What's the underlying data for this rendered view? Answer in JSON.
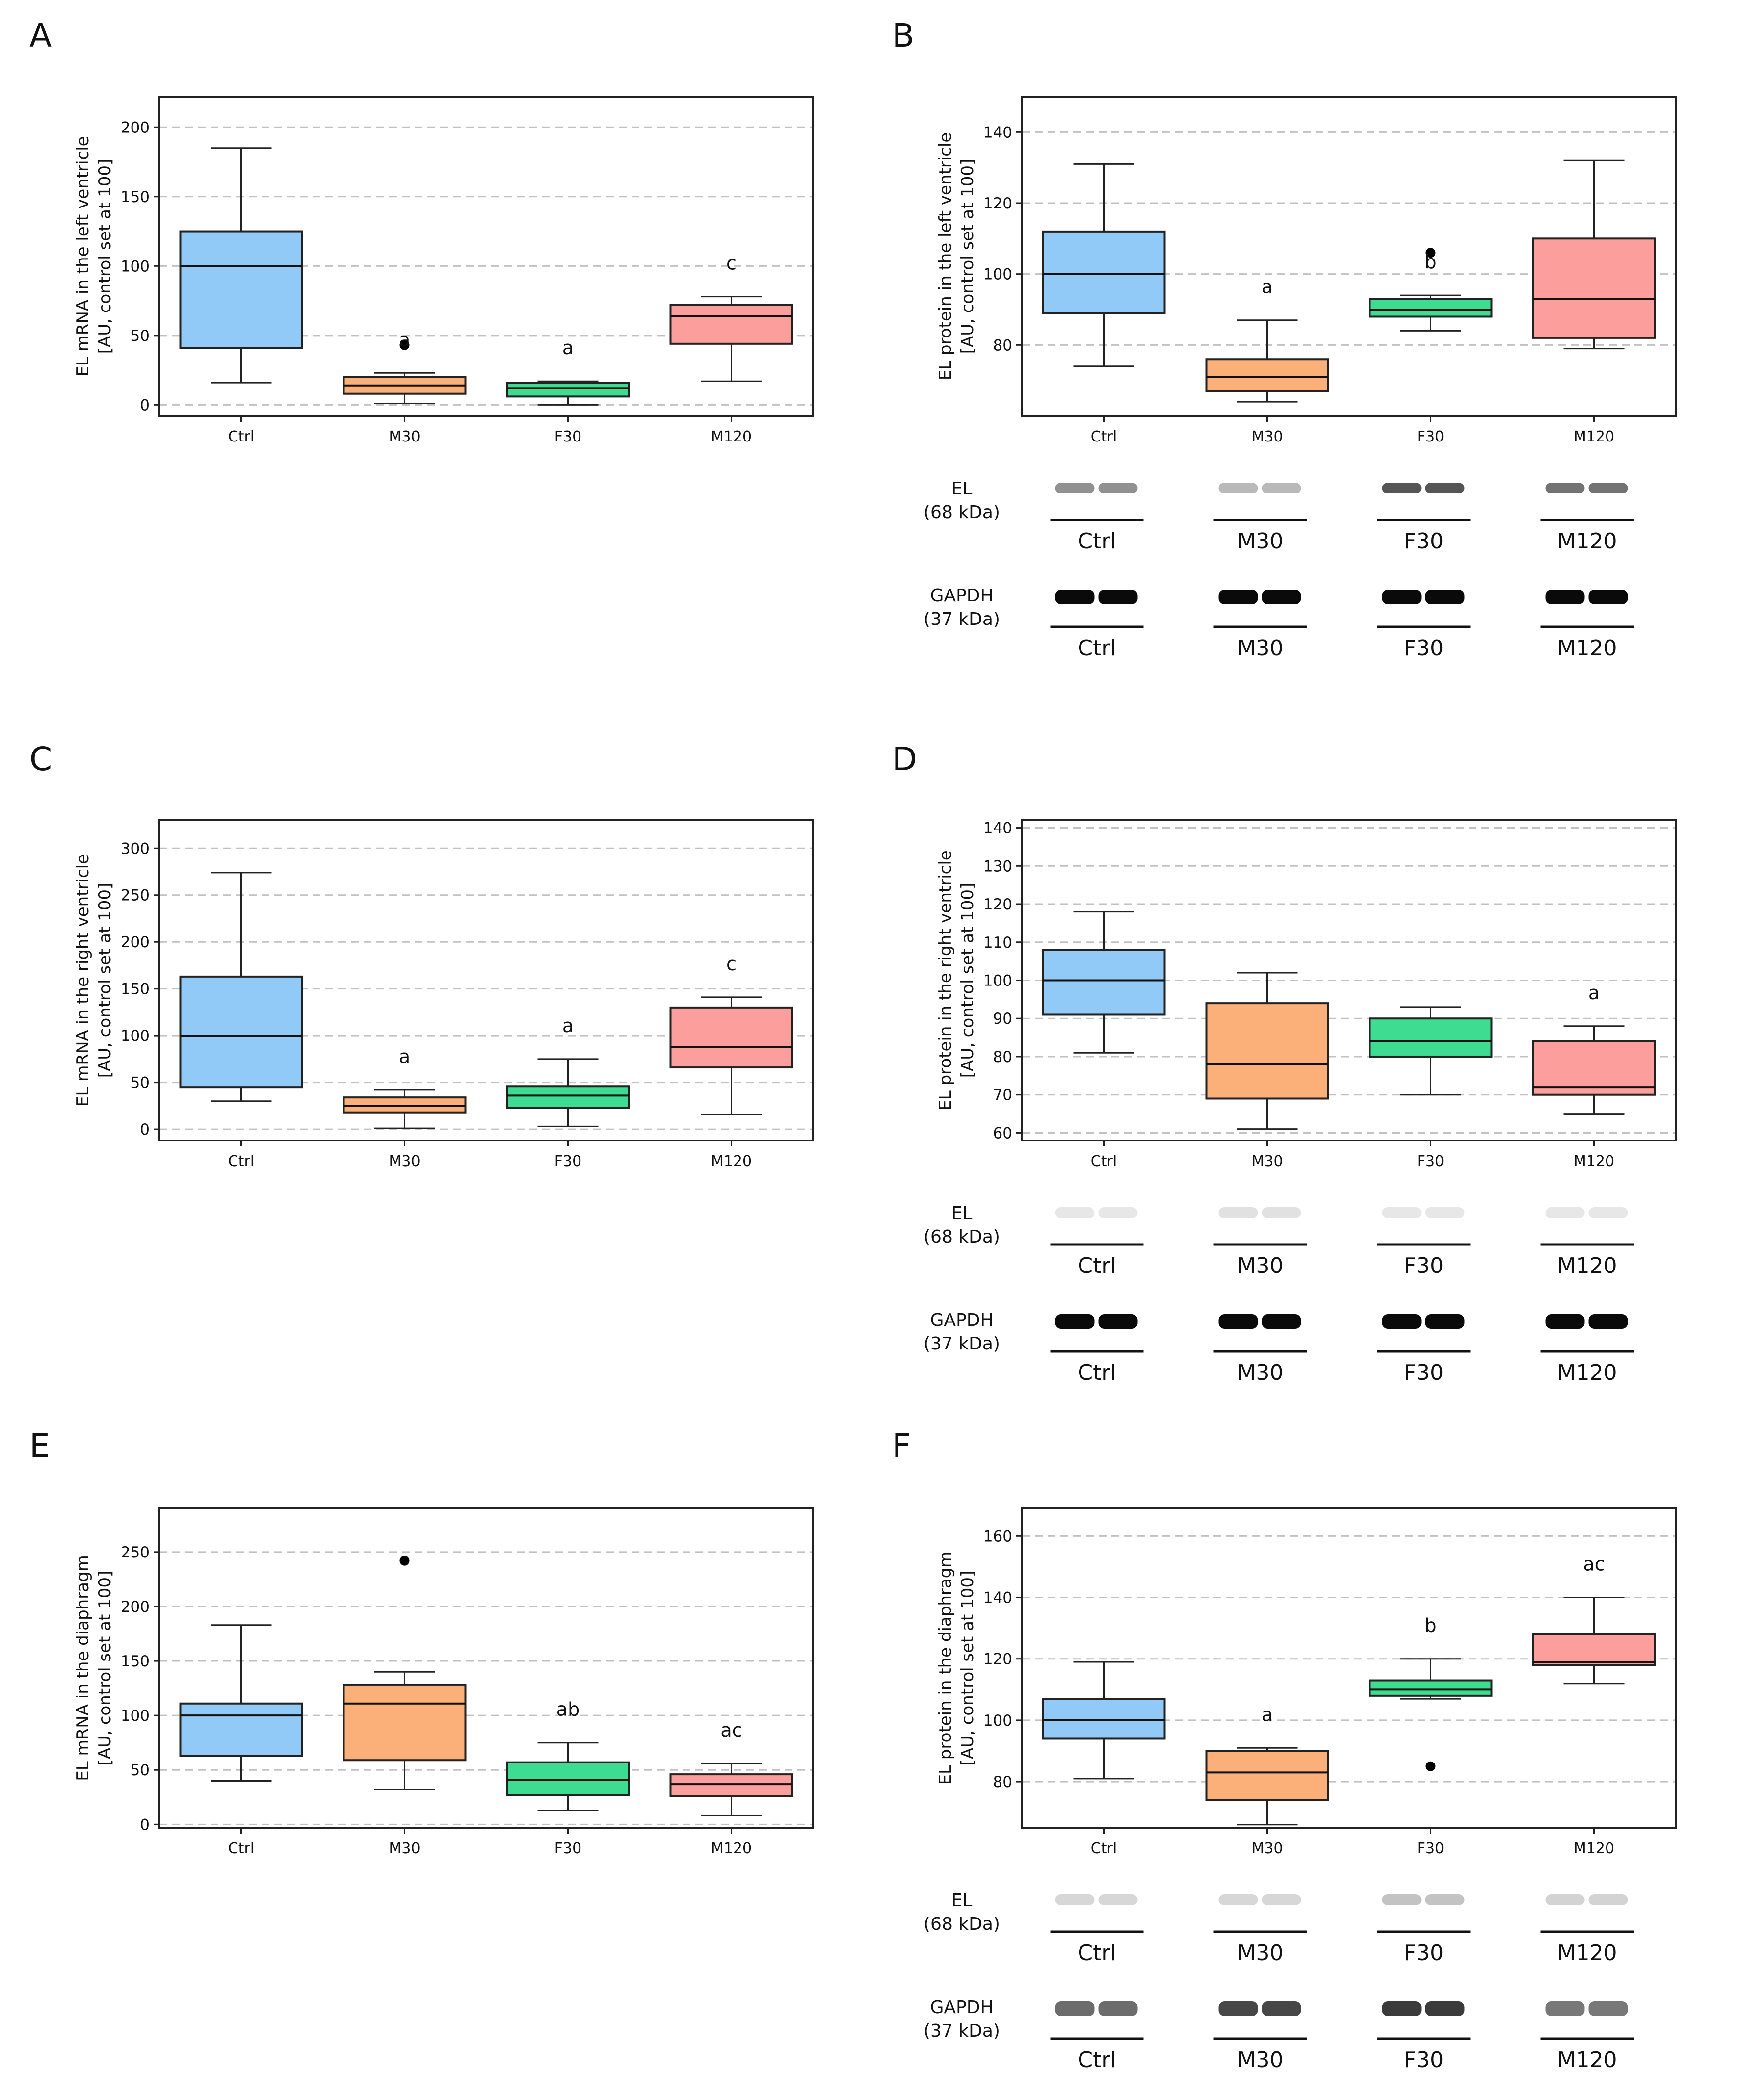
{
  "colors": {
    "Ctrl": "#91C9F7",
    "M30": "#FBB07A",
    "F30": "#3DDC91",
    "M120": "#FB9E9C"
  },
  "chart_data": [
    {
      "id": "A",
      "type": "box",
      "panel_label": "A",
      "title": "",
      "ylabel": [
        "EL mRNA in the left ventricle",
        "[AU, control set at 100]"
      ],
      "xlabel": "",
      "ylim": [
        -8,
        222
      ],
      "yticks": [
        0,
        50,
        100,
        150,
        200
      ],
      "grid": true,
      "categories": [
        "Ctrl",
        "M30",
        "F30",
        "M120"
      ],
      "boxes": [
        {
          "group": "Ctrl",
          "whisker_low": 16,
          "q1": 41,
          "median": 100,
          "q3": 125,
          "whisker_high": 185,
          "outliers": [],
          "letter": ""
        },
        {
          "group": "M30",
          "whisker_low": 1,
          "q1": 8,
          "median": 14,
          "q3": 20,
          "whisker_high": 23,
          "outliers": [
            43
          ],
          "letter": "a"
        },
        {
          "group": "F30",
          "whisker_low": 0,
          "q1": 6,
          "median": 12,
          "q3": 16,
          "whisker_high": 17,
          "outliers": [],
          "letter": "a"
        },
        {
          "group": "M120",
          "whisker_low": 17,
          "q1": 44,
          "median": 64,
          "q3": 72,
          "whisker_high": 78,
          "outliers": [],
          "letter": "c"
        }
      ]
    },
    {
      "id": "B",
      "type": "box",
      "panel_label": "B",
      "title": "",
      "ylabel": [
        "EL protein in the left ventricle",
        "[AU, control set at 100]"
      ],
      "xlabel": "",
      "ylim": [
        60,
        150
      ],
      "yticks": [
        80,
        100,
        120,
        140
      ],
      "grid": true,
      "categories": [
        "Ctrl",
        "M30",
        "F30",
        "M120"
      ],
      "boxes": [
        {
          "group": "Ctrl",
          "whisker_low": 74,
          "q1": 89,
          "median": 100,
          "q3": 112,
          "whisker_high": 131,
          "outliers": [],
          "letter": ""
        },
        {
          "group": "M30",
          "whisker_low": 64,
          "q1": 67,
          "median": 71,
          "q3": 76,
          "whisker_high": 87,
          "outliers": [],
          "letter": "a"
        },
        {
          "group": "F30",
          "whisker_low": 84,
          "q1": 88,
          "median": 90,
          "q3": 93,
          "whisker_high": 94,
          "outliers": [
            106
          ],
          "letter": "b"
        },
        {
          "group": "M120",
          "whisker_low": 79,
          "q1": 82,
          "median": 93,
          "q3": 110,
          "whisker_high": 132,
          "outliers": [],
          "letter": ""
        }
      ],
      "blot": {
        "el_label": [
          "EL",
          "(68 kDa)"
        ],
        "gapdh_label": [
          "GAPDH",
          "(37 kDa)"
        ],
        "lanes": [
          "Ctrl",
          "M30",
          "F30",
          "M120"
        ],
        "el_intensity": [
          0.55,
          0.35,
          0.85,
          0.7
        ],
        "gapdh_intensity": [
          1.0,
          1.0,
          1.0,
          1.0
        ]
      }
    },
    {
      "id": "C",
      "type": "box",
      "panel_label": "C",
      "title": "",
      "ylabel": [
        "EL mRNA in the right ventricle",
        "[AU, control set at 100]"
      ],
      "xlabel": "",
      "ylim": [
        -12,
        330
      ],
      "yticks": [
        0,
        50,
        100,
        150,
        200,
        250,
        300
      ],
      "grid": true,
      "categories": [
        "Ctrl",
        "M30",
        "F30",
        "M120"
      ],
      "boxes": [
        {
          "group": "Ctrl",
          "whisker_low": 30,
          "q1": 45,
          "median": 100,
          "q3": 163,
          "whisker_high": 274,
          "outliers": [],
          "letter": ""
        },
        {
          "group": "M30",
          "whisker_low": 1,
          "q1": 18,
          "median": 25,
          "q3": 34,
          "whisker_high": 42,
          "outliers": [],
          "letter": "a"
        },
        {
          "group": "F30",
          "whisker_low": 3,
          "q1": 23,
          "median": 36,
          "q3": 46,
          "whisker_high": 75,
          "outliers": [],
          "letter": "a"
        },
        {
          "group": "M120",
          "whisker_low": 16,
          "q1": 66,
          "median": 88,
          "q3": 130,
          "whisker_high": 141,
          "outliers": [],
          "letter": "c"
        }
      ]
    },
    {
      "id": "D",
      "type": "box",
      "panel_label": "D",
      "title": "",
      "ylabel": [
        "EL protein in the right ventricle",
        "[AU, control set at 100]"
      ],
      "xlabel": "",
      "ylim": [
        58,
        142
      ],
      "yticks": [
        60,
        70,
        80,
        90,
        100,
        110,
        120,
        130,
        140
      ],
      "grid": true,
      "categories": [
        "Ctrl",
        "M30",
        "F30",
        "M120"
      ],
      "boxes": [
        {
          "group": "Ctrl",
          "whisker_low": 81,
          "q1": 91,
          "median": 100,
          "q3": 108,
          "whisker_high": 118,
          "outliers": [],
          "letter": ""
        },
        {
          "group": "M30",
          "whisker_low": 61,
          "q1": 69,
          "median": 78,
          "q3": 94,
          "whisker_high": 102,
          "outliers": [],
          "letter": ""
        },
        {
          "group": "F30",
          "whisker_low": 70,
          "q1": 80,
          "median": 84,
          "q3": 90,
          "whisker_high": 93,
          "outliers": [],
          "letter": ""
        },
        {
          "group": "M120",
          "whisker_low": 65,
          "q1": 70,
          "median": 72,
          "q3": 84,
          "whisker_high": 88,
          "outliers": [],
          "letter": "a"
        }
      ],
      "blot": {
        "el_label": [
          "EL",
          "(68 kDa)"
        ],
        "gapdh_label": [
          "GAPDH",
          "(37 kDa)"
        ],
        "lanes": [
          "Ctrl",
          "M30",
          "F30",
          "M120"
        ],
        "el_intensity": [
          0.12,
          0.15,
          0.12,
          0.12
        ],
        "gapdh_intensity": [
          1.0,
          1.0,
          1.0,
          1.0
        ]
      }
    },
    {
      "id": "E",
      "type": "box",
      "panel_label": "E",
      "title": "",
      "ylabel": [
        "EL mRNA in the diaphragm",
        "[AU, control set at 100]"
      ],
      "xlabel": "",
      "ylim": [
        -3,
        290
      ],
      "yticks": [
        0,
        50,
        100,
        150,
        200,
        250
      ],
      "grid": true,
      "categories": [
        "Ctrl",
        "M30",
        "F30",
        "M120"
      ],
      "boxes": [
        {
          "group": "Ctrl",
          "whisker_low": 40,
          "q1": 63,
          "median": 100,
          "q3": 111,
          "whisker_high": 183,
          "outliers": [],
          "letter": ""
        },
        {
          "group": "M30",
          "whisker_low": 32,
          "q1": 59,
          "median": 111,
          "q3": 128,
          "whisker_high": 140,
          "outliers": [
            242
          ],
          "letter": ""
        },
        {
          "group": "F30",
          "whisker_low": 13,
          "q1": 27,
          "median": 41,
          "q3": 57,
          "whisker_high": 75,
          "outliers": [],
          "letter": "ab"
        },
        {
          "group": "M120",
          "whisker_low": 8,
          "q1": 26,
          "median": 37,
          "q3": 46,
          "whisker_high": 56,
          "outliers": [],
          "letter": "ac"
        }
      ]
    },
    {
      "id": "F",
      "type": "box",
      "panel_label": "F",
      "title": "",
      "ylabel": [
        "EL protein in the diaphragm",
        "[AU, control set at 100]"
      ],
      "xlabel": "",
      "ylim": [
        65,
        169
      ],
      "yticks": [
        80,
        100,
        120,
        140,
        160
      ],
      "grid": true,
      "categories": [
        "Ctrl",
        "M30",
        "F30",
        "M120"
      ],
      "boxes": [
        {
          "group": "Ctrl",
          "whisker_low": 81,
          "q1": 94,
          "median": 100,
          "q3": 107,
          "whisker_high": 119,
          "outliers": [],
          "letter": ""
        },
        {
          "group": "M30",
          "whisker_low": 66,
          "q1": 74,
          "median": 83,
          "q3": 90,
          "whisker_high": 91,
          "outliers": [],
          "letter": "a"
        },
        {
          "group": "F30",
          "whisker_low": 107,
          "q1": 108,
          "median": 110,
          "q3": 113,
          "whisker_high": 120,
          "outliers": [
            85
          ],
          "letter": "b"
        },
        {
          "group": "M120",
          "whisker_low": 112,
          "q1": 118,
          "median": 119,
          "q3": 128,
          "whisker_high": 140,
          "outliers": [],
          "letter": "ac"
        }
      ],
      "blot": {
        "el_label": [
          "EL",
          "(68 kDa)"
        ],
        "gapdh_label": [
          "GAPDH",
          "(37 kDa)"
        ],
        "lanes": [
          "Ctrl",
          "M30",
          "F30",
          "M120"
        ],
        "el_intensity": [
          0.2,
          0.2,
          0.3,
          0.22
        ],
        "gapdh_intensity": [
          0.6,
          0.75,
          0.8,
          0.55
        ]
      }
    }
  ]
}
